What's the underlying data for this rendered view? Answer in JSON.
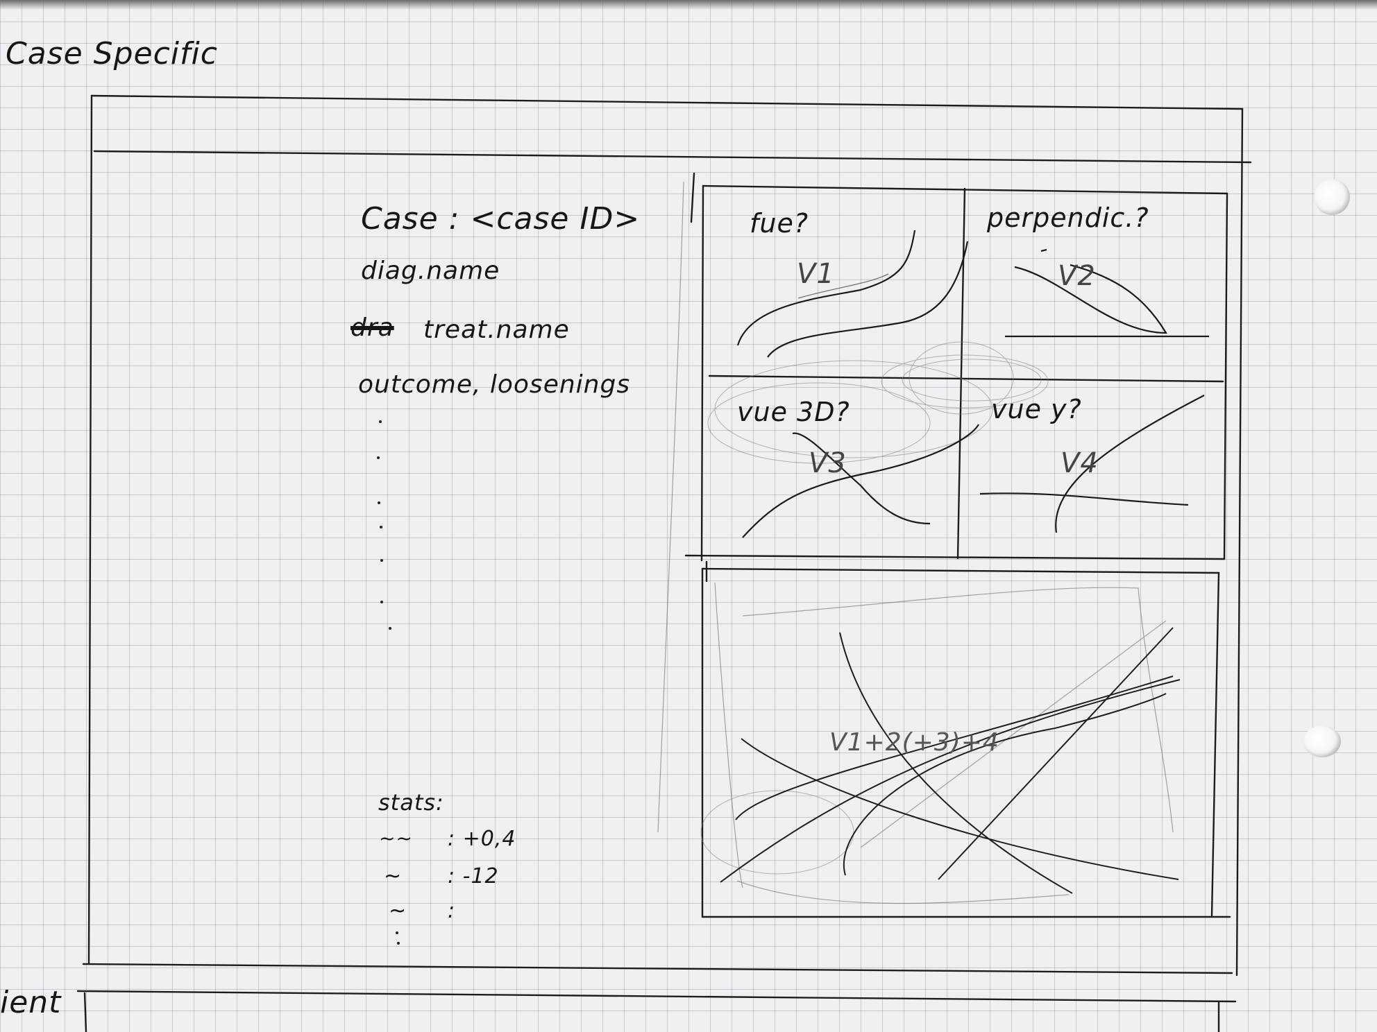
{
  "page": {
    "title": "Case Specific",
    "bottom_fragment": "ient"
  },
  "case_panel": {
    "header": "Case : <case ID>",
    "lines": [
      "diag.name",
      "treat.name",
      "outcome, loosenings"
    ],
    "struck_word": "dra"
  },
  "stats": {
    "label": "stats:",
    "rows": [
      {
        "symbol": "~~",
        "value": ": +0,4"
      },
      {
        "symbol": "~",
        "value": ": -12"
      },
      {
        "symbol": "~",
        "value": ":"
      }
    ]
  },
  "plots": [
    {
      "title": "fue?",
      "tag": "V1"
    },
    {
      "title": "perpendic.?",
      "tag": "V2"
    },
    {
      "title": "vue 3D?",
      "tag": "V3"
    },
    {
      "title": "vue y?",
      "tag": "V4"
    }
  ],
  "combined_plot": {
    "tag": "V1+2(+3)+4"
  }
}
